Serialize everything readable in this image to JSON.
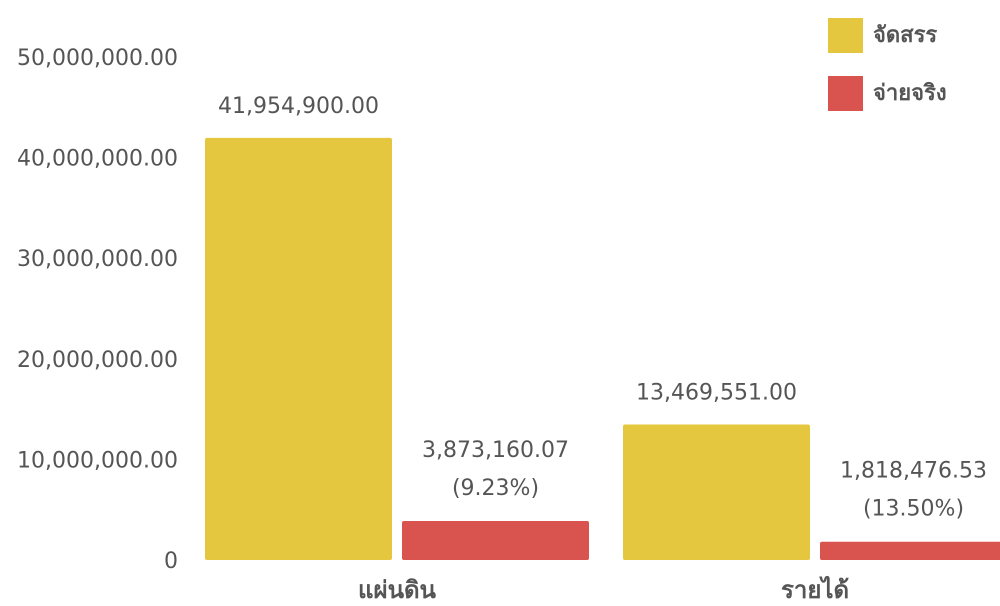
{
  "chart_data": {
    "type": "bar",
    "categories": [
      "แผ่นดิน",
      "รายได้"
    ],
    "series": [
      {
        "name": "จัดสรร",
        "color": "#E5C73F",
        "values": [
          41954900.0,
          13469551.0
        ],
        "labels": [
          "41,954,900.00",
          "13,469,551.00"
        ],
        "percent_labels": [
          "",
          ""
        ]
      },
      {
        "name": "จ่ายจริง",
        "color": "#D9534F",
        "values": [
          3873160.07,
          1818476.53
        ],
        "labels": [
          "3,873,160.07",
          "1,818,476.53"
        ],
        "percent_labels": [
          "(9.23%)",
          "(13.50%)"
        ]
      }
    ],
    "yticks": [
      0,
      10000000,
      20000000,
      30000000,
      40000000,
      50000000
    ],
    "ytick_labels": [
      "0",
      "10,000,000.00",
      "20,000,000.00",
      "30,000,000.00",
      "40,000,000.00",
      "50,000,000.00"
    ],
    "ylim": [
      0,
      50000000
    ],
    "title": "",
    "xlabel": "",
    "ylabel": "",
    "grid": false,
    "legend_position": "top-right"
  }
}
